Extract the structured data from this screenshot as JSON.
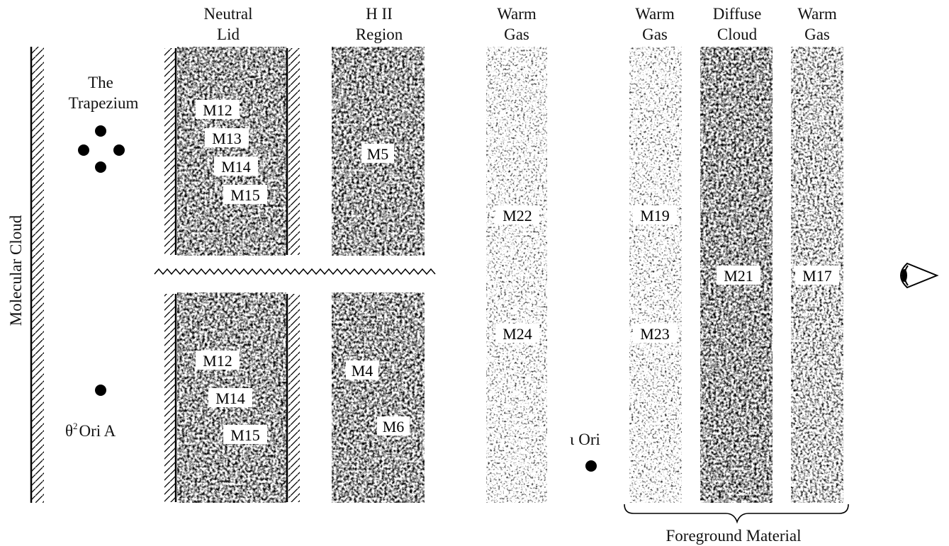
{
  "column_headers": {
    "neutral_lid": [
      "Neutral",
      "Lid"
    ],
    "h2_region": [
      "H II",
      "Region"
    ],
    "warm_gas_1": [
      "Warm",
      "Gas"
    ],
    "warm_gas_2": [
      "Warm",
      "Gas"
    ],
    "diffuse_cloud": [
      "Diffuse",
      "Cloud"
    ],
    "warm_gas_3": [
      "Warm",
      "Gas"
    ]
  },
  "molecular_cloud_label": "Molecular Cloud",
  "trapezium_label": [
    "The",
    "Trapezium"
  ],
  "theta2_label": {
    "theta": "θ",
    "sup": "2",
    "rest": "Ori A"
  },
  "iota_label": {
    "iota": "ι",
    "rest": "Ori"
  },
  "foreground_label": "Foreground Material",
  "components": {
    "upper_lid": [
      "M12",
      "M13",
      "M14",
      "M15"
    ],
    "upper_h2": [
      "M5"
    ],
    "lower_lid": [
      "M12",
      "M14",
      "M15"
    ],
    "lower_h2": [
      "M4",
      "M6"
    ],
    "warm1": [
      "M22",
      "M24"
    ],
    "warm2": [
      "M19",
      "M23"
    ],
    "diffuse": [
      "M21"
    ],
    "warm3": [
      "M17"
    ]
  },
  "colors": {
    "ink": "#000000",
    "background": "#ffffff"
  },
  "icons": {
    "observer": "eye-icon",
    "star": "star-dot-icon"
  }
}
